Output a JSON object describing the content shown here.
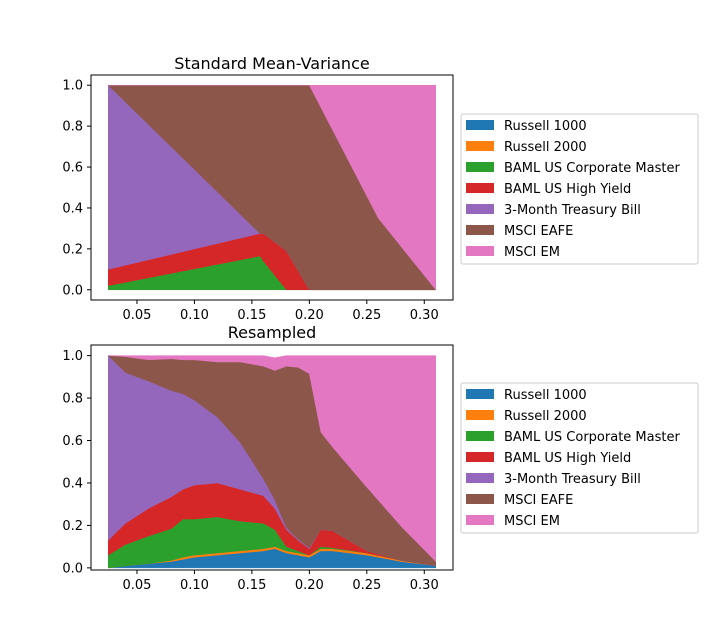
{
  "chart_data": [
    {
      "type": "area",
      "stacked": true,
      "title": "Standard Mean-Variance",
      "xlabel": "",
      "ylabel": "",
      "xlim": [
        0.01,
        0.325
      ],
      "ylim": [
        -0.05,
        1.05
      ],
      "x_ticks": [
        0.05,
        0.1,
        0.15,
        0.2,
        0.25,
        0.3
      ],
      "x_tick_labels": [
        "0.05",
        "0.10",
        "0.15",
        "0.20",
        "0.25",
        "0.30"
      ],
      "y_ticks": [
        0.0,
        0.2,
        0.4,
        0.6,
        0.8,
        1.0
      ],
      "y_tick_labels": [
        "0.0",
        "0.2",
        "0.4",
        "0.6",
        "0.8",
        "1.0"
      ],
      "grid": false,
      "legend_position": "right",
      "x": [
        0.025,
        0.157,
        0.16,
        0.18,
        0.2,
        0.26,
        0.31
      ],
      "series": [
        {
          "name": "Russell 1000",
          "color": "#1f77b4",
          "values": [
            0,
            0,
            0,
            0,
            0,
            0,
            0
          ]
        },
        {
          "name": "Russell 2000",
          "color": "#ff7f0e",
          "values": [
            0,
            0,
            0,
            0,
            0,
            0,
            0
          ]
        },
        {
          "name": "BAML US Corporate Master",
          "color": "#2ca02c",
          "values": [
            0.02,
            0.165,
            0.14,
            0,
            0,
            0,
            0
          ]
        },
        {
          "name": "BAML US High Yield",
          "color": "#d62728",
          "values": [
            0.08,
            0.11,
            0.135,
            0.19,
            0,
            0,
            0
          ]
        },
        {
          "name": "3-Month Treasury Bill",
          "color": "#9467bd",
          "values": [
            0.9,
            0,
            0,
            0,
            0,
            0,
            0
          ]
        },
        {
          "name": "MSCI EAFE",
          "color": "#8c564b",
          "values": [
            0,
            0.725,
            0.725,
            0.81,
            1.0,
            0.35,
            0
          ]
        },
        {
          "name": "MSCI EM",
          "color": "#e377c2",
          "values": [
            0,
            0,
            0,
            0,
            0,
            0.65,
            1.0
          ]
        }
      ]
    },
    {
      "type": "area",
      "stacked": true,
      "title": "Resampled",
      "xlabel": "",
      "ylabel": "",
      "xlim": [
        0.01,
        0.325
      ],
      "ylim": [
        -0.01,
        1.05
      ],
      "x_ticks": [
        0.05,
        0.1,
        0.15,
        0.2,
        0.25,
        0.3
      ],
      "x_tick_labels": [
        "0.05",
        "0.10",
        "0.15",
        "0.20",
        "0.25",
        "0.30"
      ],
      "y_ticks": [
        0.0,
        0.2,
        0.4,
        0.6,
        0.8,
        1.0
      ],
      "y_tick_labels": [
        "0.0",
        "0.2",
        "0.4",
        "0.6",
        "0.8",
        "1.0"
      ],
      "grid": false,
      "legend_position": "right",
      "x": [
        0.025,
        0.04,
        0.06,
        0.08,
        0.09,
        0.1,
        0.12,
        0.14,
        0.16,
        0.17,
        0.18,
        0.19,
        0.2,
        0.21,
        0.22,
        0.25,
        0.28,
        0.31
      ],
      "series": [
        {
          "name": "Russell 1000",
          "color": "#1f77b4",
          "values": [
            0.0,
            0.01,
            0.02,
            0.03,
            0.04,
            0.05,
            0.06,
            0.07,
            0.08,
            0.09,
            0.07,
            0.06,
            0.05,
            0.08,
            0.08,
            0.06,
            0.03,
            0.01
          ]
        },
        {
          "name": "Russell 2000",
          "color": "#ff7f0e",
          "values": [
            0.0,
            0.0,
            0.0,
            0.005,
            0.01,
            0.01,
            0.01,
            0.01,
            0.01,
            0.01,
            0.01,
            0.01,
            0.01,
            0.01,
            0.01,
            0.01,
            0.005,
            0.0
          ]
        },
        {
          "name": "BAML US Corporate Master",
          "color": "#2ca02c",
          "values": [
            0.06,
            0.1,
            0.13,
            0.15,
            0.18,
            0.17,
            0.17,
            0.14,
            0.12,
            0.08,
            0.02,
            0.01,
            0.0,
            0.01,
            0.005,
            0.0,
            0.0,
            0.0
          ]
        },
        {
          "name": "BAML US High Yield",
          "color": "#d62728",
          "values": [
            0.07,
            0.1,
            0.13,
            0.15,
            0.14,
            0.16,
            0.16,
            0.15,
            0.13,
            0.1,
            0.08,
            0.05,
            0.03,
            0.08,
            0.08,
            0.01,
            0.0,
            0.0
          ]
        },
        {
          "name": "3-Month Treasury Bill",
          "color": "#9467bd",
          "values": [
            0.87,
            0.71,
            0.6,
            0.5,
            0.45,
            0.4,
            0.31,
            0.22,
            0.08,
            0.04,
            0.01,
            0.005,
            0.005,
            0.0,
            0.0,
            0.0,
            0.0,
            0.0
          ]
        },
        {
          "name": "MSCI EAFE",
          "color": "#8c564b",
          "values": [
            0.0,
            0.075,
            0.1,
            0.15,
            0.16,
            0.19,
            0.26,
            0.38,
            0.53,
            0.61,
            0.76,
            0.81,
            0.82,
            0.46,
            0.395,
            0.3,
            0.16,
            0.02
          ]
        },
        {
          "name": "MSCI EM",
          "color": "#e377c2",
          "values": [
            0.0,
            0.005,
            0.02,
            0.015,
            0.02,
            0.02,
            0.03,
            0.03,
            0.05,
            0.06,
            0.05,
            0.055,
            0.085,
            0.36,
            0.43,
            0.62,
            0.805,
            0.97
          ]
        }
      ]
    }
  ]
}
